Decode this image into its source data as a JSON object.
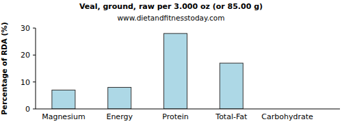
{
  "chart_data": {
    "type": "bar",
    "title": "Veal, ground, raw per 3.000 oz (or 85.00 g)",
    "subtitle": "www.dietandfitnesstoday.com",
    "y_label": "Percentage of RDA (%)",
    "categories": [
      "Magnesium",
      "Energy",
      "Protein",
      "Total-Fat",
      "Carbohydrate"
    ],
    "values": [
      7,
      8,
      28,
      17,
      0
    ],
    "color": "#add8e6",
    "ylim": [
      0,
      30
    ],
    "yticks": [
      0,
      10,
      20,
      30
    ],
    "grid": false
  }
}
